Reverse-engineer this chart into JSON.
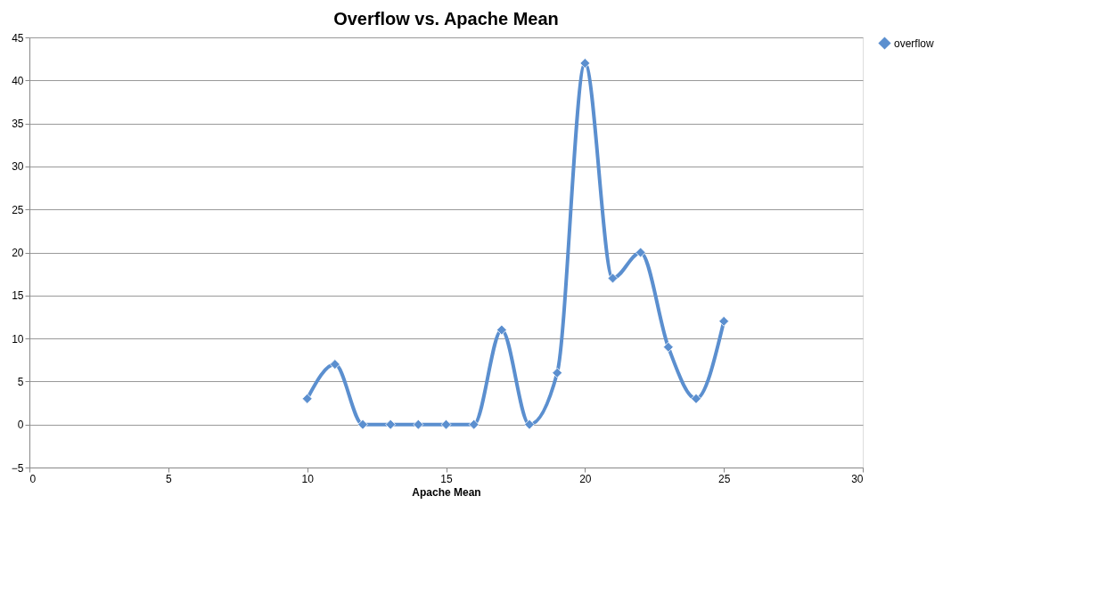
{
  "chart_data": {
    "type": "line",
    "title": "Overflow vs. Apache Mean",
    "xlabel": "Apache Mean",
    "x": [
      10,
      11,
      12,
      13,
      14,
      15,
      16,
      17,
      18,
      19,
      20,
      21,
      22,
      23,
      24,
      25
    ],
    "series": [
      {
        "name": "overflow",
        "color": "#5b8fcf",
        "values": [
          3,
          7,
          0,
          0,
          0,
          0,
          0,
          11,
          0,
          6,
          42,
          17,
          20,
          9,
          3,
          12
        ]
      }
    ],
    "xlim": [
      0,
      30
    ],
    "xticks": [
      0,
      5,
      10,
      15,
      20,
      25,
      30
    ],
    "ylim": [
      -5,
      45
    ],
    "yticks": [
      -5,
      0,
      5,
      10,
      15,
      20,
      25,
      30,
      35,
      40,
      45
    ],
    "grid": "y",
    "legend": "right",
    "marker": "diamond",
    "line_style": "solid"
  }
}
